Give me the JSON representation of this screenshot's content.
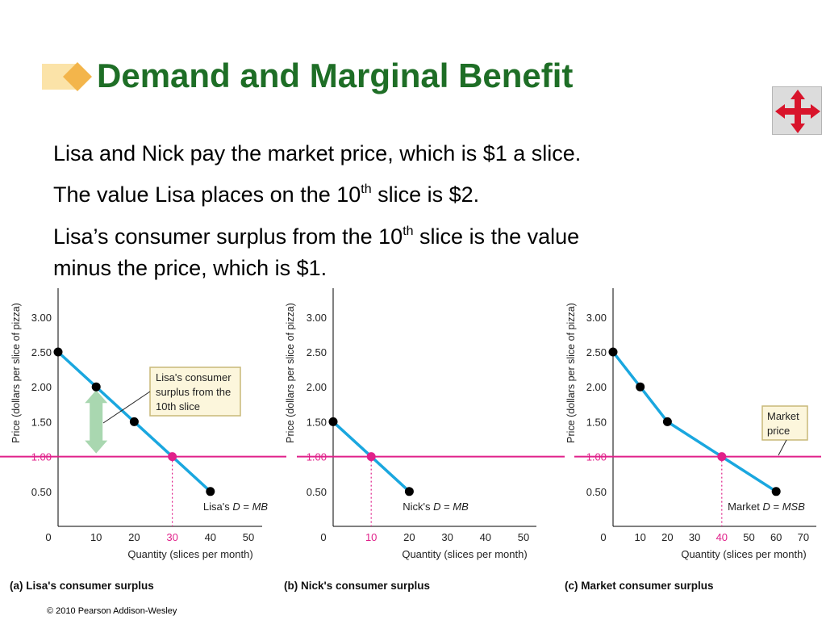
{
  "slide": {
    "title": "Demand and Marginal Benefit",
    "bullets": [
      {
        "pre": "Lisa and Nick pay the market price, which is $1 a slice.",
        "sup": "",
        "post": ""
      },
      {
        "pre": "The value Lisa places on the 10",
        "sup": "th",
        "post": " slice is $2."
      },
      {
        "pre": "Lisa’s consumer surplus from the 10",
        "sup": "th",
        "post": " slice is the value"
      },
      {
        "pre": "minus the price, which is $1.",
        "sup": "",
        "post": ""
      }
    ],
    "footer": "© 2010 Pearson Addison-Wesley",
    "nav_icon": "move-arrows-icon"
  },
  "colors": {
    "title": "#1e6e26",
    "demand_line": "#1aa7df",
    "price_line": "#e0218a",
    "arrow": "#a9d7b0",
    "callout_bg": "#fcf6dc",
    "callout_border": "#c8b878",
    "nav_arrows": "#d8142b"
  },
  "chart_data": [
    {
      "type": "line",
      "panel_label": "(a) Lisa's consumer surplus",
      "ylabel": "Price (dollars per slice of pizza)",
      "xlabel": "Quantity (slices per month)",
      "yticks": [
        "3.00",
        "2.50",
        "2.00",
        "1.50",
        "1.00",
        "0.50"
      ],
      "xticks": [
        "0",
        "10",
        "20",
        "30",
        "40",
        "50"
      ],
      "highlight_xtick": "30",
      "xlim": [
        0,
        50
      ],
      "ylim": [
        0,
        3.2
      ],
      "series": [
        {
          "name": "Lisa's D = MB",
          "x": [
            0,
            10,
            20,
            30,
            40
          ],
          "y": [
            2.5,
            2.0,
            1.5,
            1.0,
            0.5
          ]
        }
      ],
      "price_line": {
        "y": 1.0,
        "label": "1.00"
      },
      "equilibrium": {
        "x": 30,
        "y": 1.0
      },
      "surplus_arrow": {
        "x": 10,
        "from": 1.0,
        "to": 2.0
      },
      "callout": [
        "Lisa's consumer",
        "surplus from the",
        "10th slice"
      ]
    },
    {
      "type": "line",
      "panel_label": "(b) Nick's consumer surplus",
      "ylabel": "Price (dollars per slice of pizza)",
      "xlabel": "Quantity (slices per month)",
      "yticks": [
        "3.00",
        "2.50",
        "2.00",
        "1.50",
        "1.00",
        "0.50"
      ],
      "xticks": [
        "0",
        "10",
        "20",
        "30",
        "40",
        "50"
      ],
      "highlight_xtick": "10",
      "xlim": [
        0,
        50
      ],
      "ylim": [
        0,
        3.2
      ],
      "series": [
        {
          "name": "Nick's D = MB",
          "x": [
            0,
            10,
            20
          ],
          "y": [
            1.5,
            1.0,
            0.5
          ]
        }
      ],
      "price_line": {
        "y": 1.0,
        "label": "1.00"
      },
      "equilibrium": {
        "x": 10,
        "y": 1.0
      }
    },
    {
      "type": "line",
      "panel_label": "(c) Market consumer surplus",
      "ylabel": "Price (dollars per slice of pizza)",
      "xlabel": "Quantity (slices per month)",
      "yticks": [
        "3.00",
        "2.50",
        "2.00",
        "1.50",
        "1.00",
        "0.50"
      ],
      "xticks": [
        "0",
        "10",
        "20",
        "30",
        "40",
        "50",
        "60",
        "70"
      ],
      "highlight_xtick": "40",
      "xlim": [
        0,
        70
      ],
      "ylim": [
        0,
        3.2
      ],
      "series": [
        {
          "name": "Market D = MSB",
          "x": [
            0,
            10,
            20,
            40,
            60
          ],
          "y": [
            2.5,
            2.0,
            1.5,
            1.0,
            0.5
          ]
        }
      ],
      "price_line": {
        "y": 1.0,
        "label": "1.00"
      },
      "equilibrium": {
        "x": 40,
        "y": 1.0
      },
      "callout": [
        "Market",
        "price"
      ]
    }
  ]
}
